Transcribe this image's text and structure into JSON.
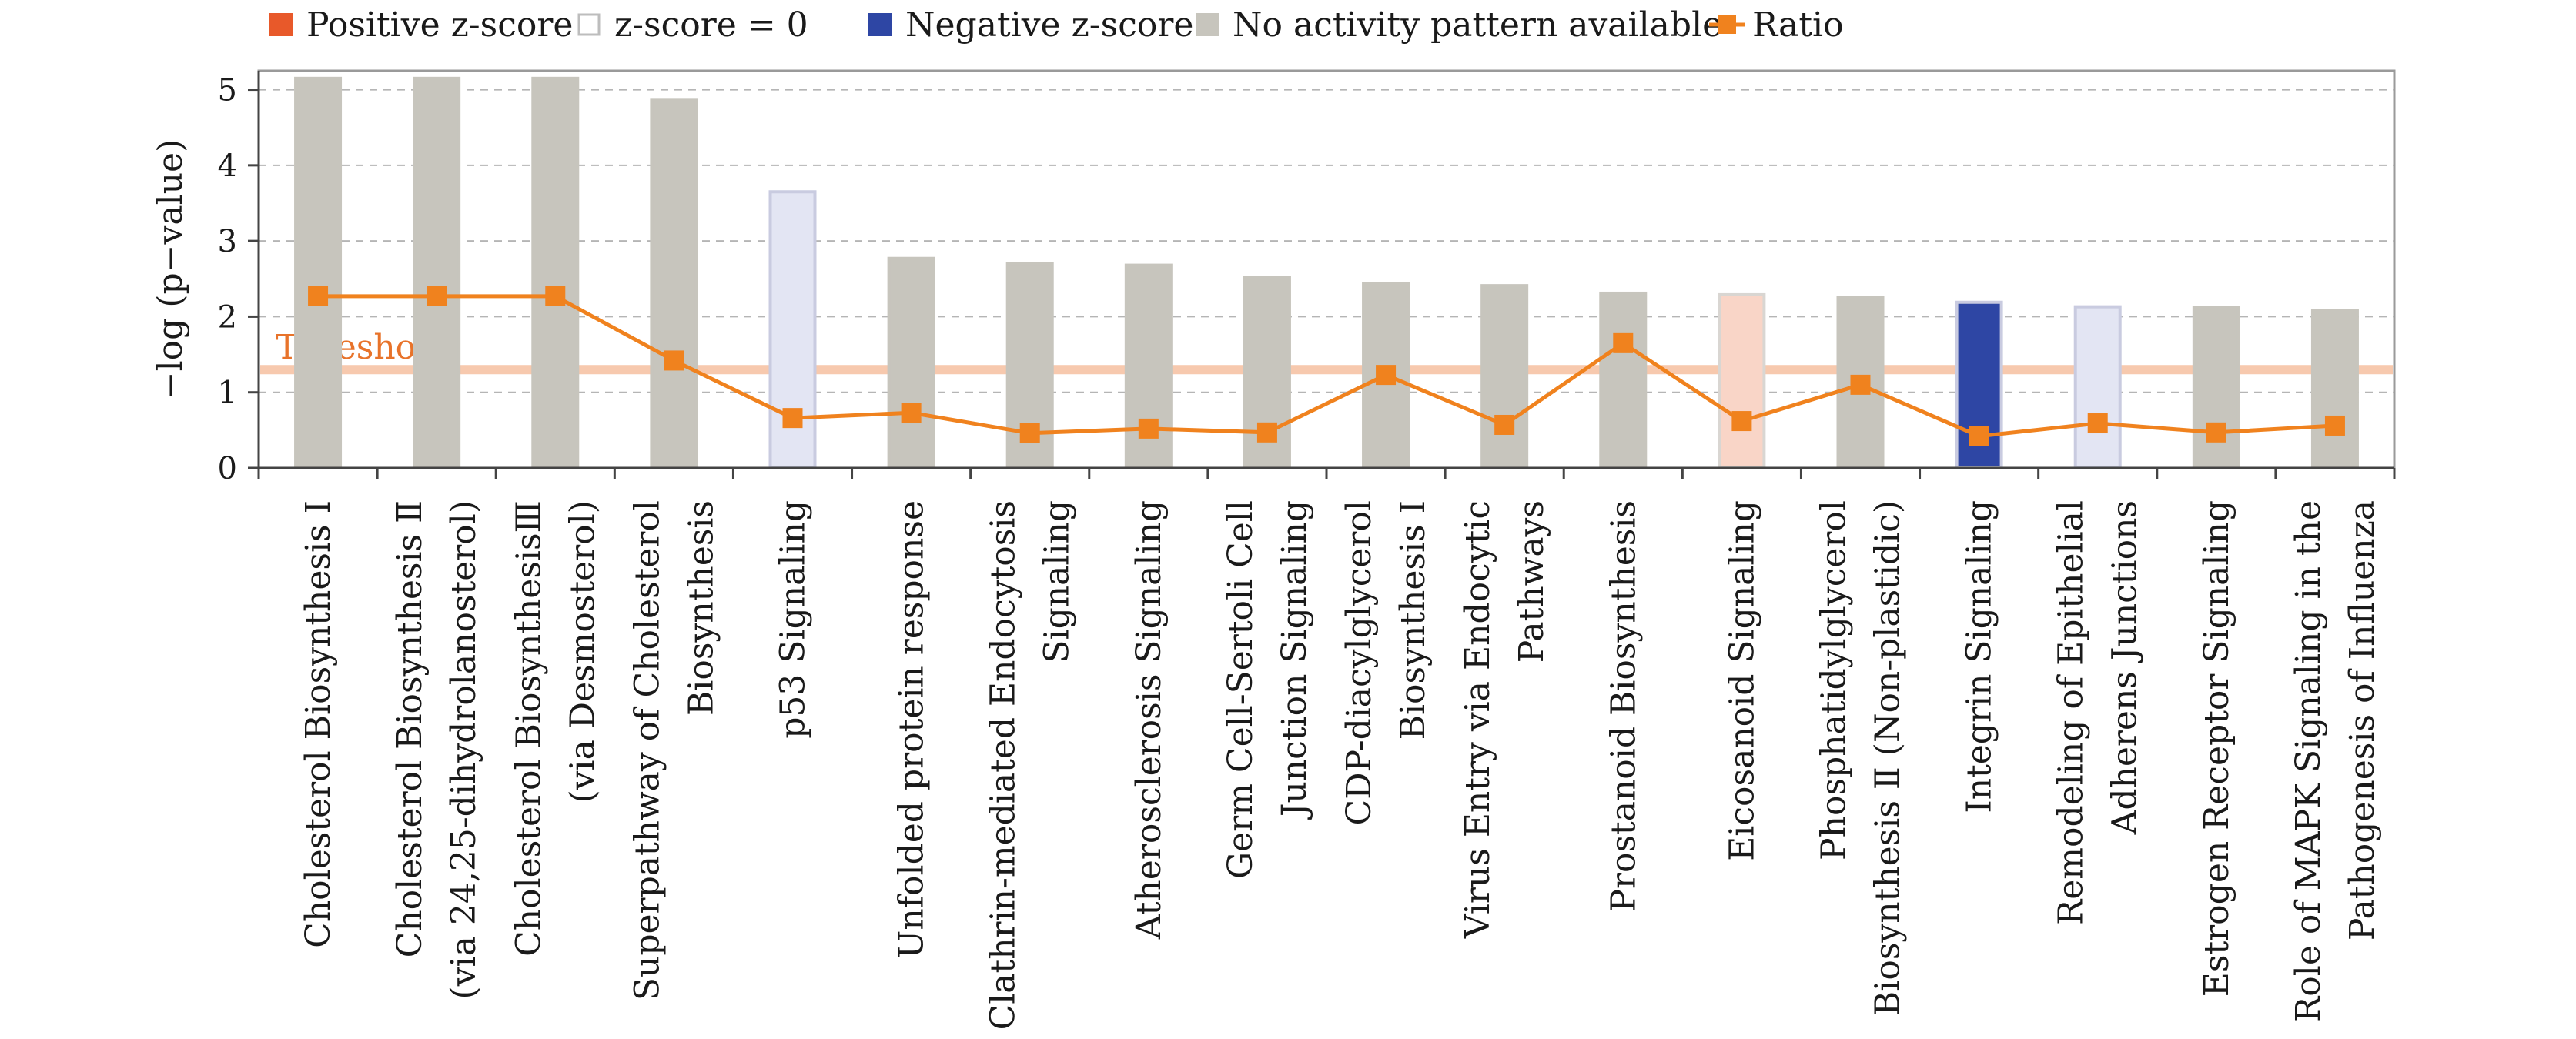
{
  "chart_data": {
    "type": "bar",
    "title": "",
    "xlabel": "",
    "ylabel": "−log (p−value)",
    "ylim": [
      0,
      5.25
    ],
    "yticks": [
      0,
      1,
      2,
      3,
      4,
      5
    ],
    "grid": true,
    "legend_position": "top",
    "threshold": {
      "label": "Threshold",
      "value": 1.3,
      "color": "#f7c9ae"
    },
    "legend": [
      {
        "key": "positive",
        "label": "Positive z-score",
        "color": "#e8592a",
        "style": "fill"
      },
      {
        "key": "zero",
        "label": "z-score = 0",
        "color": "#ffffff",
        "style": "outline"
      },
      {
        "key": "negative",
        "label": "Negative z-score",
        "color": "#2e46a4",
        "style": "fill"
      },
      {
        "key": "none",
        "label": "No activity pattern available",
        "color": "#c7c5bd",
        "style": "fill"
      },
      {
        "key": "ratio",
        "label": "Ratio",
        "color": "#f0821e",
        "style": "line-marker"
      }
    ],
    "category_styles": {
      "none": {
        "fill": "#c7c5bd",
        "stroke": "#c7c5bd"
      },
      "zero": {
        "fill": "#e3e5f3",
        "stroke": "#c9cbe0"
      },
      "positive": {
        "fill": "#f9d5c7",
        "stroke": "#d9d6d2"
      },
      "negative": {
        "fill": "#2e46a4",
        "stroke": "#c9cbe0"
      }
    },
    "categories": [
      [
        "Cholesterol Biosynthesis Ⅰ"
      ],
      [
        "Cholesterol Biosynthesis Ⅱ",
        "(via 24,25-dihydrolanosterol)"
      ],
      [
        "Cholesterol BiosynthesisⅢ",
        "(via Desmosterol)"
      ],
      [
        "Superpathway of Cholesterol",
        "Biosynthesis"
      ],
      [
        "p53 Signaling"
      ],
      [
        "Unfolded protein response"
      ],
      [
        "Clathrin-mediated Endocytosis",
        "Signaling"
      ],
      [
        "Atherosclerosis Signaling"
      ],
      [
        "Germ Cell-Sertoli Cell",
        "Junction Signaling"
      ],
      [
        "CDP-diacylglycerol",
        "Biosynthesis Ⅰ"
      ],
      [
        "Virus Entry via Endocytic",
        "Pathways"
      ],
      [
        "Prostanoid Biosynthesis"
      ],
      [
        "Eicosanoid Signaling"
      ],
      [
        "Phosphatidylglycerol",
        "Biosynthesis Ⅱ (Non-plastidic)"
      ],
      [
        "Integrin Signaling"
      ],
      [
        "Remodeling of Epithelial",
        "Adherens Junctions"
      ],
      [
        "Estrogen Receptor Signaling"
      ],
      [
        "Role of MAPK Signaling in the",
        "Pathogenesis of Influenza"
      ]
    ],
    "bar_status": [
      "none",
      "none",
      "none",
      "none",
      "zero",
      "none",
      "none",
      "none",
      "none",
      "none",
      "none",
      "none",
      "positive",
      "none",
      "negative",
      "zero",
      "none",
      "none"
    ],
    "series": [
      {
        "name": "-log(p-value)",
        "type": "bar",
        "values": [
          5.15,
          5.15,
          5.15,
          4.87,
          3.65,
          2.77,
          2.7,
          2.68,
          2.52,
          2.44,
          2.41,
          2.31,
          2.29,
          2.25,
          2.19,
          2.13,
          2.12,
          2.08
        ]
      },
      {
        "name": "Ratio",
        "type": "line",
        "color": "#f0821e",
        "values": [
          2.27,
          2.27,
          2.27,
          1.42,
          0.66,
          0.73,
          0.46,
          0.52,
          0.47,
          1.23,
          0.57,
          1.65,
          0.62,
          1.1,
          0.42,
          0.59,
          0.47,
          0.56
        ]
      }
    ]
  }
}
